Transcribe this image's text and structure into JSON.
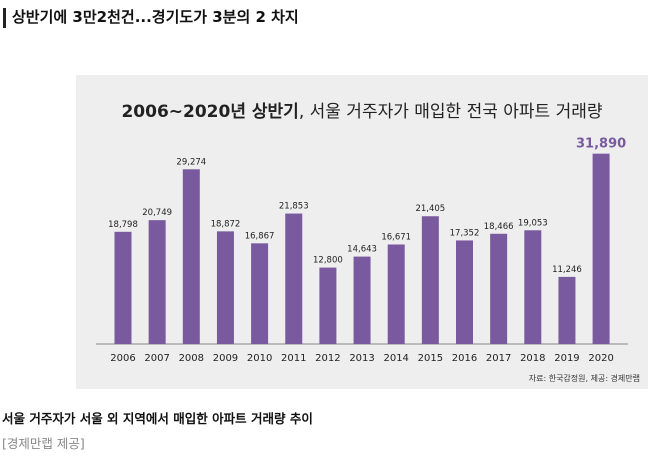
{
  "article": {
    "headline": "상반기에 3만2천건...경기도가 3분의 2 차지",
    "caption": "서울 거주자가 서울 외 지역에서 매입한 아파트 거래량 추이",
    "credit": "[경제만랩 제공]"
  },
  "colors": {
    "bar": "#7a5a9e",
    "highlight_label": "#7a5a9e",
    "panel": "#efeeef",
    "axis": "#888888"
  },
  "chart_data": {
    "type": "bar",
    "title_bold": "2006~2020년 상반기",
    "title_rest": ", 서울 거주자가 매입한 전국 아파트 거래량",
    "source": "자료: 한국감정원, 제공: 경제만랩",
    "categories": [
      "2006",
      "2007",
      "2008",
      "2009",
      "2010",
      "2011",
      "2012",
      "2013",
      "2014",
      "2015",
      "2016",
      "2017",
      "2018",
      "2019",
      "2020"
    ],
    "values": [
      18798,
      20749,
      29274,
      18872,
      16867,
      21853,
      12800,
      14643,
      16671,
      21405,
      17352,
      18466,
      19053,
      11246,
      31890
    ],
    "labels": [
      "18,798",
      "20,749",
      "29,274",
      "18,872",
      "16,867",
      "21,853",
      "12,800",
      "14,643",
      "16,671",
      "21,405",
      "17,352",
      "18,466",
      "19,053",
      "11,246",
      "31,890"
    ],
    "highlight_index": 14,
    "ylim": [
      0,
      32000
    ],
    "grid": false,
    "legend": "none"
  }
}
